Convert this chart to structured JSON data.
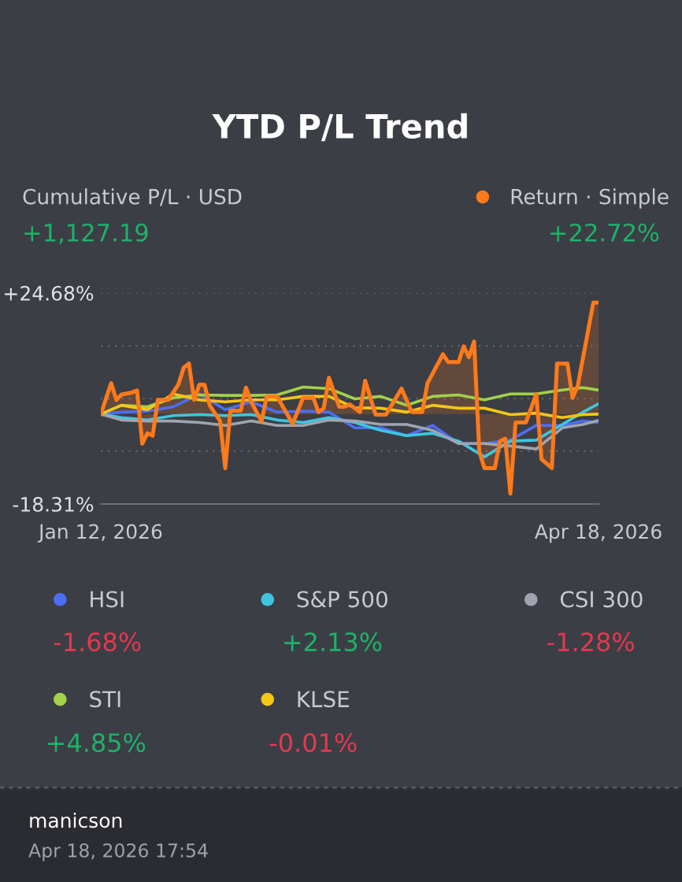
{
  "chart_data": {
    "type": "line",
    "title": "YTD P/L Trend",
    "subtitle": "Cumulative P/L · USD",
    "annotations": [
      "+1,127.19",
      "+22.72%",
      "-1.68%",
      "+2.13%",
      "-1.28%",
      "+4.85%",
      "-0.01%",
      "manicson",
      "Apr 18, 2026 17:54"
    ],
    "series": [
      {
        "name": "Return · Simple",
        "type": "area",
        "color": "#ff7a1a",
        "x": [
          "2026-01-12",
          "2026-01-14",
          "2026-01-15",
          "2026-01-16",
          "2026-01-18",
          "2026-01-19",
          "2026-01-20",
          "2026-01-21",
          "2026-01-22",
          "2026-01-23",
          "2026-01-25",
          "2026-01-27",
          "2026-01-28",
          "2026-01-29",
          "2026-01-30",
          "2026-01-31",
          "2026-02-01",
          "2026-02-02",
          "2026-02-04",
          "2026-02-05",
          "2026-02-06",
          "2026-02-08",
          "2026-02-09",
          "2026-02-10",
          "2026-02-12",
          "2026-02-13",
          "2026-02-15",
          "2026-02-18",
          "2026-02-20",
          "2026-02-22",
          "2026-02-23",
          "2026-02-24",
          "2026-02-25",
          "2026-02-27",
          "2026-02-28",
          "2026-03-01",
          "2026-03-03",
          "2026-03-04",
          "2026-03-06",
          "2026-03-08",
          "2026-03-11",
          "2026-03-13",
          "2026-03-15",
          "2026-03-16",
          "2026-03-19",
          "2026-03-20",
          "2026-03-22",
          "2026-03-23",
          "2026-03-24",
          "2026-03-25",
          "2026-03-26",
          "2026-03-27",
          "2026-03-29",
          "2026-03-30",
          "2026-03-31",
          "2026-04-01",
          "2026-04-02",
          "2026-04-04",
          "2026-04-06",
          "2026-04-07",
          "2026-04-09",
          "2026-04-10",
          "2026-04-12",
          "2026-04-13",
          "2026-04-14",
          "2026-04-17",
          "2026-04-18"
        ],
        "values": [
          0,
          6.3,
          2.9,
          4.0,
          4.4,
          4.8,
          -6.0,
          -3.9,
          -4.4,
          2.9,
          2.9,
          6.1,
          9.5,
          10.3,
          2.9,
          6.0,
          6.0,
          1.8,
          -1.4,
          -11.0,
          0.7,
          0.7,
          5.4,
          2.5,
          -1.5,
          3.6,
          3.6,
          -2.0,
          3.3,
          3.3,
          0.4,
          1.2,
          7.4,
          1.5,
          1.5,
          2.0,
          0.4,
          6.8,
          -0.1,
          -0.1,
          5.2,
          0.4,
          0.4,
          6.3,
          12.2,
          10.6,
          10.6,
          13.8,
          11.6,
          14.8,
          -7.6,
          -11.0,
          -11.0,
          -5.5,
          -5.0,
          -16.2,
          -1.7,
          -1.7,
          4.1,
          -9.2,
          -11.0,
          10.3,
          10.3,
          3.3,
          5.8,
          22.7,
          22.7
        ]
      },
      {
        "name": "HSI",
        "color": "#4c6ef5",
        "values": [
          0,
          0.4,
          0.6,
          1.5,
          4.1,
          0.9,
          2.5,
          0.4,
          0.6,
          0.4,
          -2.8,
          -2.8,
          -4.4,
          -2.3,
          -6.0,
          -6.0,
          -5.3,
          -2.3,
          -2.3,
          -1.4,
          -1.7
        ]
      },
      {
        "name": "S&P 500",
        "color": "#3ec6e0",
        "values": [
          0,
          -0.7,
          -1.2,
          -0.3,
          -0.1,
          -0.3,
          -0.1,
          -1.2,
          -1.7,
          -0.7,
          -1.7,
          -3.3,
          -4.4,
          -3.9,
          -5.5,
          -8.7,
          -5.5,
          -5.3,
          -2.1,
          0.4,
          2.1
        ]
      },
      {
        "name": "CSI 300",
        "color": "#a0a4b0",
        "values": [
          0,
          -1.2,
          -1.4,
          -1.4,
          -1.7,
          -2.3,
          -1.4,
          -2.3,
          -2.3,
          -1.2,
          -1.4,
          -2.1,
          -2.1,
          -3.3,
          -6.0,
          -6.0,
          -6.5,
          -7.1,
          -2.8,
          -2.1,
          -1.3
        ]
      },
      {
        "name": "STI",
        "color": "#a3d149",
        "values": [
          0,
          1.8,
          1.5,
          3.3,
          3.9,
          3.8,
          3.8,
          3.9,
          5.5,
          5.2,
          3.1,
          3.6,
          1.8,
          3.6,
          3.9,
          2.9,
          4.1,
          4.1,
          4.9,
          5.4,
          4.9
        ]
      },
      {
        "name": "KLSE",
        "color": "#f5c518",
        "values": [
          0,
          1.8,
          0.9,
          4.1,
          2.9,
          2.5,
          2.9,
          2.9,
          3.6,
          3.6,
          1.3,
          1.2,
          0.4,
          1.8,
          1.2,
          1.2,
          -0.1,
          0.2,
          -0.7,
          -0.1,
          0.0
        ]
      }
    ],
    "x": [
      "2026-01-12",
      "2026-01-16",
      "2026-01-21",
      "2026-01-26",
      "2026-01-31",
      "2026-02-05",
      "2026-02-10",
      "2026-02-15",
      "2026-02-20",
      "2026-02-25",
      "2026-03-02",
      "2026-03-07",
      "2026-03-12",
      "2026-03-17",
      "2026-03-22",
      "2026-03-27",
      "2026-04-01",
      "2026-04-06",
      "2026-04-11",
      "2026-04-15",
      "2026-04-18"
    ],
    "xlim": [
      "2026-01-12",
      "2026-04-18"
    ],
    "xticks": [
      {
        "value": "2026-01-12",
        "label": "Jan 12, 2026"
      },
      {
        "value": "2026-04-18",
        "label": "Apr 18, 2026"
      }
    ],
    "ylim": [
      -18.31,
      24.68
    ],
    "yticks": [
      {
        "value": 24.68,
        "label": "+24.68%"
      },
      {
        "value": 13.93,
        "label": null
      },
      {
        "value": 3.18,
        "label": null
      },
      {
        "value": -7.56,
        "label": null
      },
      {
        "value": -18.31,
        "label": "-18.31%"
      }
    ],
    "grid": "y",
    "legend": "bottom",
    "marker": "none",
    "line_style": "solid"
  }
}
